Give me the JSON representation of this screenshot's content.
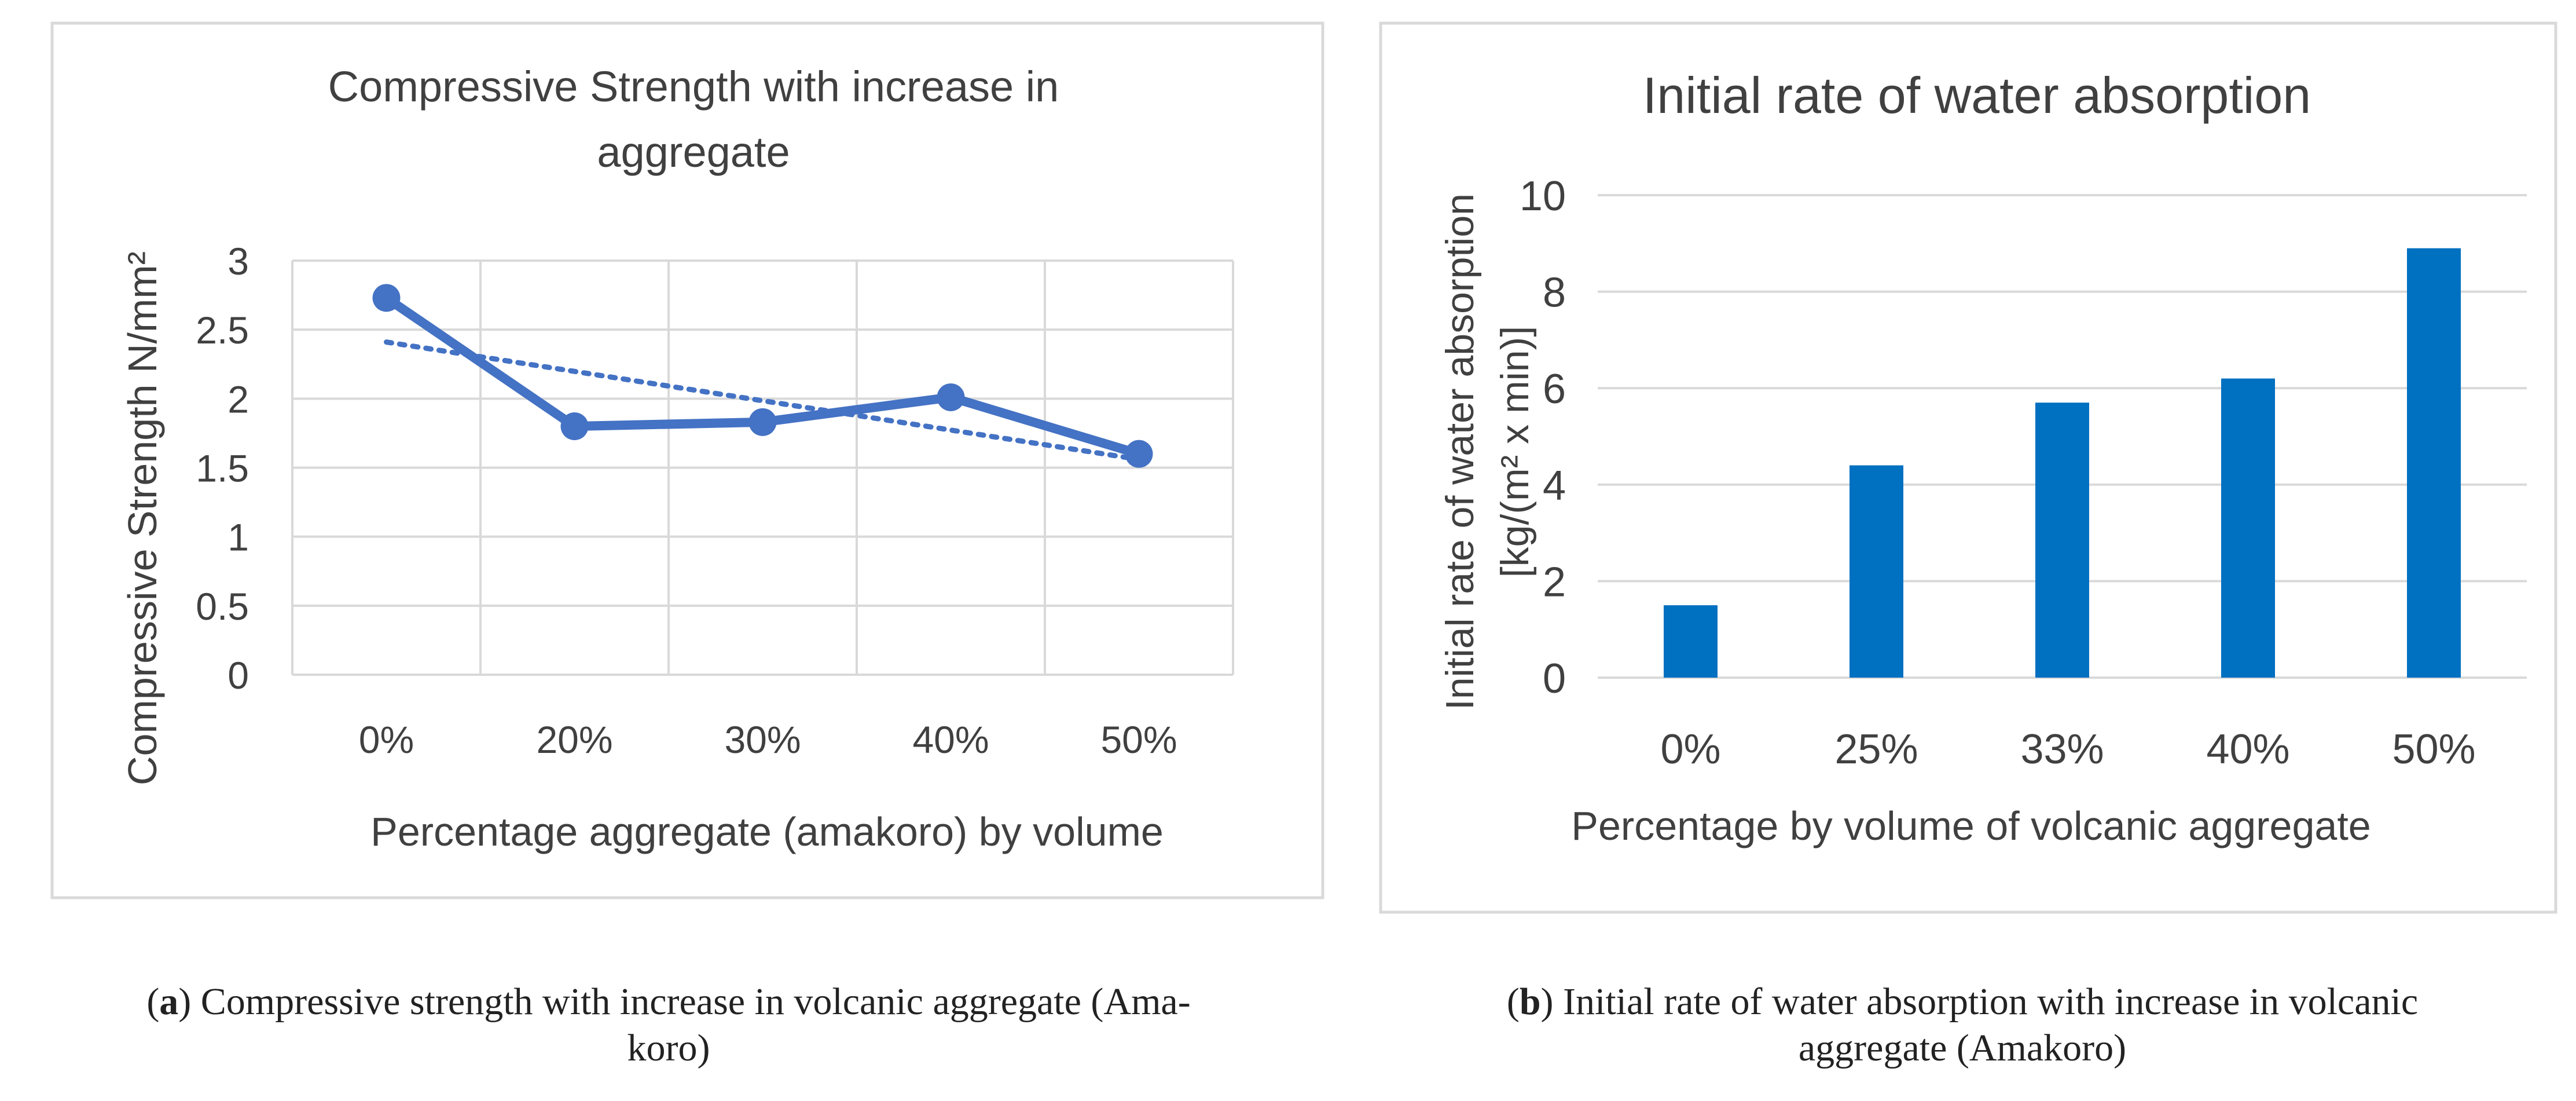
{
  "chart_data": [
    {
      "type": "line",
      "title": "Compressive Strength with increase in aggregate",
      "title_lines": [
        "Compressive Strength with increase in",
        "aggregate"
      ],
      "xlabel": "Percentage aggregate (amakoro) by volume",
      "ylabel": "Compressive Strength N/mm²",
      "categories": [
        "0%",
        "20%",
        "30%",
        "40%",
        "50%"
      ],
      "ylim": [
        0,
        3
      ],
      "yticks": [
        0,
        0.5,
        1,
        1.5,
        2,
        2.5,
        3
      ],
      "ytick_labels": [
        "0",
        "0.5",
        "1",
        "1.5",
        "2",
        "2.5",
        "3"
      ],
      "grid": true,
      "series": [
        {
          "name": "Compressive Strength",
          "values": [
            2.73,
            1.8,
            1.83,
            2.01,
            1.6
          ],
          "color": "#4472C4"
        }
      ],
      "trendline": {
        "type": "linear",
        "style": "dotted",
        "start": 2.41,
        "end": 1.56,
        "color": "#4472C4"
      }
    },
    {
      "type": "bar",
      "title": "Initial rate of water absorption",
      "xlabel": "Percentage by volume of volcanic aggregate",
      "ylabel_lines": [
        "Initial rate of water absorption",
        "[kg/(m² x min)]"
      ],
      "categories": [
        "0%",
        "25%",
        "33%",
        "40%",
        "50%"
      ],
      "values": [
        1.5,
        4.4,
        5.7,
        6.2,
        8.9
      ],
      "ylim": [
        0,
        10
      ],
      "yticks": [
        0,
        2,
        4,
        6,
        8,
        10
      ],
      "ytick_labels": [
        "0",
        "2",
        "4",
        "6",
        "8",
        "10"
      ],
      "grid": true,
      "color": "#0070C0"
    }
  ],
  "captions": {
    "a": {
      "letter": "a",
      "line1": ") Compressive strength with increase in volcanic aggregate (Ama-",
      "line2": "koro)"
    },
    "b": {
      "letter": "b",
      "line1": ") Initial rate of water absorption with increase in volcanic",
      "line2": "aggregate (Amakoro)"
    }
  }
}
